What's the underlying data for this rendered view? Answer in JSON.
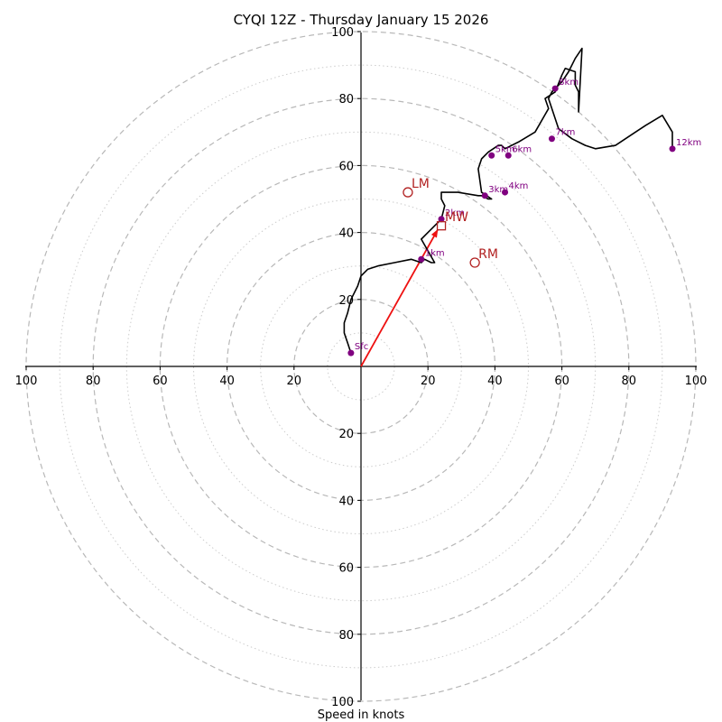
{
  "chart_data": {
    "type": "hodograph",
    "title": "CYQI 12Z - Thursday January 15 2026",
    "xlabel": "Speed in knots",
    "ylim": [
      -100,
      100
    ],
    "xlim": [
      -100,
      100
    ],
    "rings_major": [
      20,
      40,
      60,
      80,
      100
    ],
    "rings_minor": [
      10,
      30,
      50,
      70,
      90
    ],
    "tick_labels": {
      "x_left": [
        "100",
        "80",
        "60",
        "40",
        "20"
      ],
      "x_right": [
        "20",
        "40",
        "60",
        "80",
        "100"
      ],
      "y_up": [
        "20",
        "40",
        "60",
        "80",
        "100"
      ],
      "y_down": [
        "20",
        "40",
        "60",
        "80",
        "100"
      ]
    },
    "hodograph_trace": {
      "name": "wind profile",
      "color": "#000000",
      "u": [
        -3,
        -4,
        -5,
        -5,
        -4,
        -3,
        -1,
        0,
        2,
        5,
        10,
        15,
        18,
        19,
        21,
        22,
        18,
        20,
        22,
        24,
        25,
        24,
        24,
        29,
        35,
        36,
        38,
        39,
        36,
        35,
        36,
        38,
        41,
        42,
        43,
        47,
        52,
        56,
        55,
        58,
        60,
        61,
        64,
        64,
        65,
        65,
        65,
        65,
        66,
        64,
        62,
        60,
        58,
        57,
        56,
        58,
        59,
        63,
        67,
        70,
        76,
        82,
        85,
        90,
        93,
        93
      ],
      "v": [
        4,
        7,
        10,
        13,
        16,
        20,
        24,
        27,
        29,
        30,
        31,
        32,
        31,
        32,
        31,
        31,
        38,
        40,
        42,
        44,
        48,
        50,
        52,
        52,
        51,
        51,
        50,
        50,
        52,
        59,
        62,
        64,
        66,
        66,
        65,
        67,
        70,
        77,
        80,
        82,
        87,
        89,
        88,
        84,
        82,
        77,
        76,
        76,
        95,
        92,
        88,
        85,
        83,
        82,
        80,
        74,
        71,
        68,
        66,
        65,
        66,
        70,
        72,
        75,
        70,
        65
      ]
    },
    "height_markers": [
      {
        "label": "Sfc",
        "u": -3,
        "v": 4
      },
      {
        "label": "1km",
        "u": 18,
        "v": 32
      },
      {
        "label": "2km",
        "u": 24,
        "v": 44
      },
      {
        "label": "3km",
        "u": 37,
        "v": 51
      },
      {
        "label": "4km",
        "u": 43,
        "v": 52
      },
      {
        "label": "5km",
        "u": 39,
        "v": 63
      },
      {
        "label": "6km",
        "u": 44,
        "v": 63
      },
      {
        "label": "7km",
        "u": 57,
        "v": 68
      },
      {
        "label": "8km",
        "u": 58,
        "v": 83
      },
      {
        "label": "12km",
        "u": 93,
        "v": 65
      }
    ],
    "storm_motions": [
      {
        "label": "LM",
        "u": 14,
        "v": 52,
        "marker": "circle"
      },
      {
        "label": "RM",
        "u": 34,
        "v": 31,
        "marker": "circle"
      },
      {
        "label": "MW",
        "u": 24,
        "v": 42,
        "marker": "square"
      }
    ],
    "motion_vector": {
      "from_u": 0,
      "from_v": 0,
      "to_u": 23,
      "to_v": 41
    },
    "colors": {
      "trace": "#000000",
      "height_marker": "#800080",
      "storm_motion": "#b22222",
      "motion_vector": "#ee1111",
      "ring_major": "#b8b8b8",
      "ring_minor": "#cccccc",
      "axis": "#000000"
    }
  }
}
